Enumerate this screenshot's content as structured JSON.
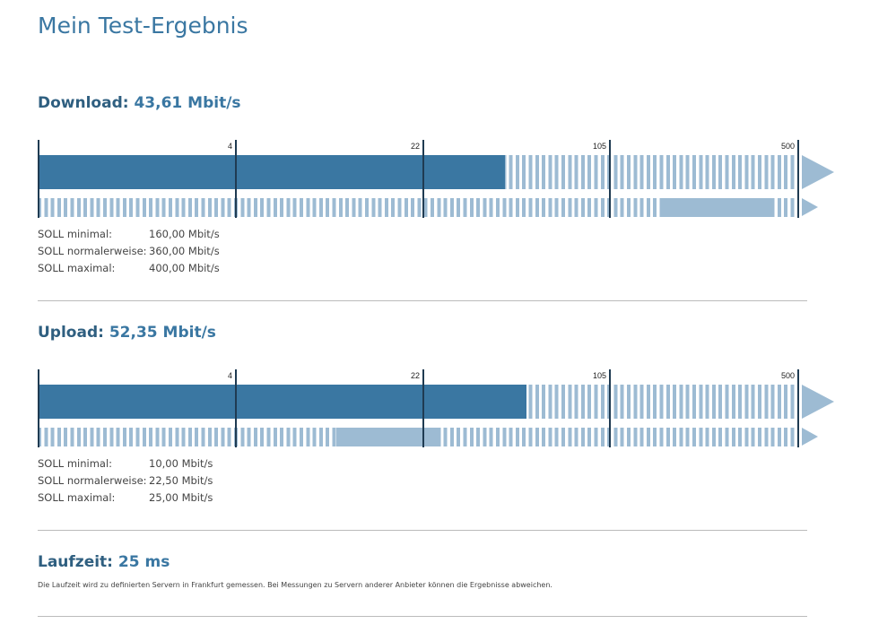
{
  "title": "Mein Test-Ergebnis",
  "scale_ticks": [
    0,
    4,
    22,
    105,
    500
  ],
  "colors": {
    "accent": "#3a77a2",
    "light": "#9dbbd3",
    "tick": "#1f3b52"
  },
  "download": {
    "label": "Download:",
    "value_text": "43,61 Mbit/s",
    "value": 43.61,
    "soll_range": [
      160,
      400
    ],
    "tick_labels": [
      "4",
      "22",
      "105",
      "500"
    ],
    "soll": [
      {
        "label": "SOLL minimal:",
        "value": "160,00 Mbit/s"
      },
      {
        "label": "SOLL normalerweise:",
        "value": "360,00 Mbit/s"
      },
      {
        "label": "SOLL maximal:",
        "value": "400,00 Mbit/s"
      }
    ]
  },
  "upload": {
    "label": "Upload:",
    "value_text": "52,35 Mbit/s",
    "value": 52.35,
    "soll_range": [
      10,
      25
    ],
    "tick_labels": [
      "4",
      "22",
      "105",
      "500"
    ],
    "soll": [
      {
        "label": "SOLL minimal:",
        "value": "10,00 Mbit/s"
      },
      {
        "label": "SOLL normalerweise:",
        "value": "22,50 Mbit/s"
      },
      {
        "label": "SOLL maximal:",
        "value": "25,00 Mbit/s"
      }
    ]
  },
  "latency": {
    "label": "Laufzeit:",
    "value_text": "25 ms",
    "note": "Die Laufzeit wird zu definierten Servern in Frankfurt gemessen. Bei Messungen zu Servern anderer Anbieter können die Ergebnisse abweichen."
  }
}
